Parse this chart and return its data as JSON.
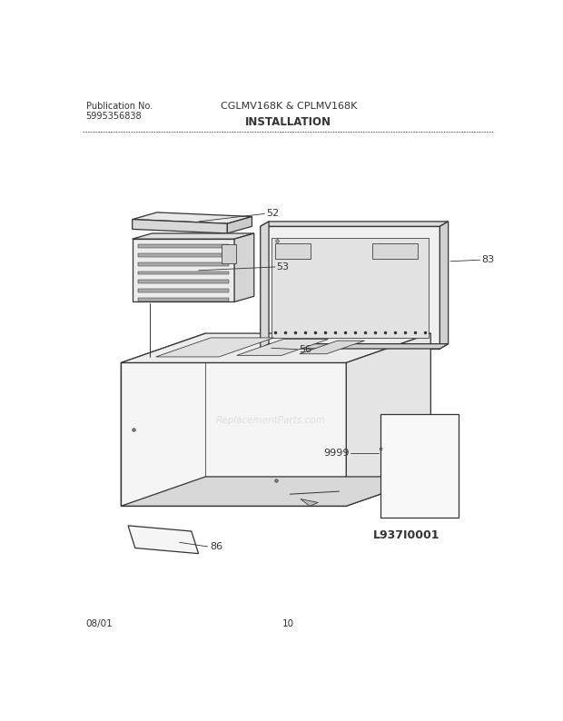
{
  "title_left1": "Publication No.",
  "title_left2": "5995356838",
  "title_center1": "CGLMV168K & CPLMV168K",
  "title_center2": "INSTALLATION",
  "footer_left": "08/01",
  "footer_center": "10",
  "diagram_id": "L937I0001",
  "watermark": "ReplacementParts.com",
  "bg_color": "#ffffff",
  "line_color": "#333333",
  "lw_main": 0.9,
  "lw_detail": 0.55
}
